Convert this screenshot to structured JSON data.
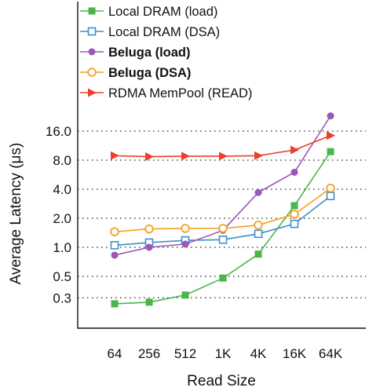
{
  "chart_data": {
    "type": "line",
    "title": "",
    "xlabel": "Read Size",
    "ylabel": "Average Latency (μs)",
    "yscale": "log2",
    "ylim": [
      0.17,
      32
    ],
    "grid": "horizontal dotted",
    "legend_position": "top",
    "categories": [
      "64",
      "256",
      "512",
      "1K",
      "4K",
      "16K",
      "64K"
    ],
    "yticks": [
      0.3,
      0.5,
      1.0,
      2.0,
      4.0,
      8.0,
      16.0
    ],
    "ytick_labels": [
      "0.3",
      "0.5",
      "1.0",
      "2.0",
      "4.0",
      "8.0",
      "16.0"
    ],
    "series": [
      {
        "name": "Local DRAM (load)",
        "color": "#4ab54a",
        "marker": "square-filled",
        "bold": false,
        "values": [
          0.26,
          0.27,
          0.32,
          0.48,
          0.85,
          2.7,
          9.8
        ]
      },
      {
        "name": "Local DRAM (DSA)",
        "color": "#3f8fca",
        "marker": "square-open",
        "bold": false,
        "values": [
          1.05,
          1.12,
          1.18,
          1.2,
          1.38,
          1.75,
          3.4
        ]
      },
      {
        "name": "Beluga (load)",
        "color": "#9b56b8",
        "marker": "circle-filled",
        "bold": true,
        "values": [
          0.83,
          1.0,
          1.08,
          1.5,
          3.7,
          6.0,
          23.0
        ]
      },
      {
        "name": "Beluga (DSA)",
        "color": "#f5a020",
        "marker": "circle-open",
        "bold": true,
        "values": [
          1.45,
          1.55,
          1.57,
          1.57,
          1.7,
          2.2,
          4.1
        ]
      },
      {
        "name": "RDMA MemPool (READ)",
        "color": "#e8412c",
        "marker": "triangle-right-filled",
        "bold": false,
        "values": [
          8.9,
          8.7,
          8.8,
          8.8,
          8.9,
          10.2,
          14.4
        ]
      }
    ]
  }
}
